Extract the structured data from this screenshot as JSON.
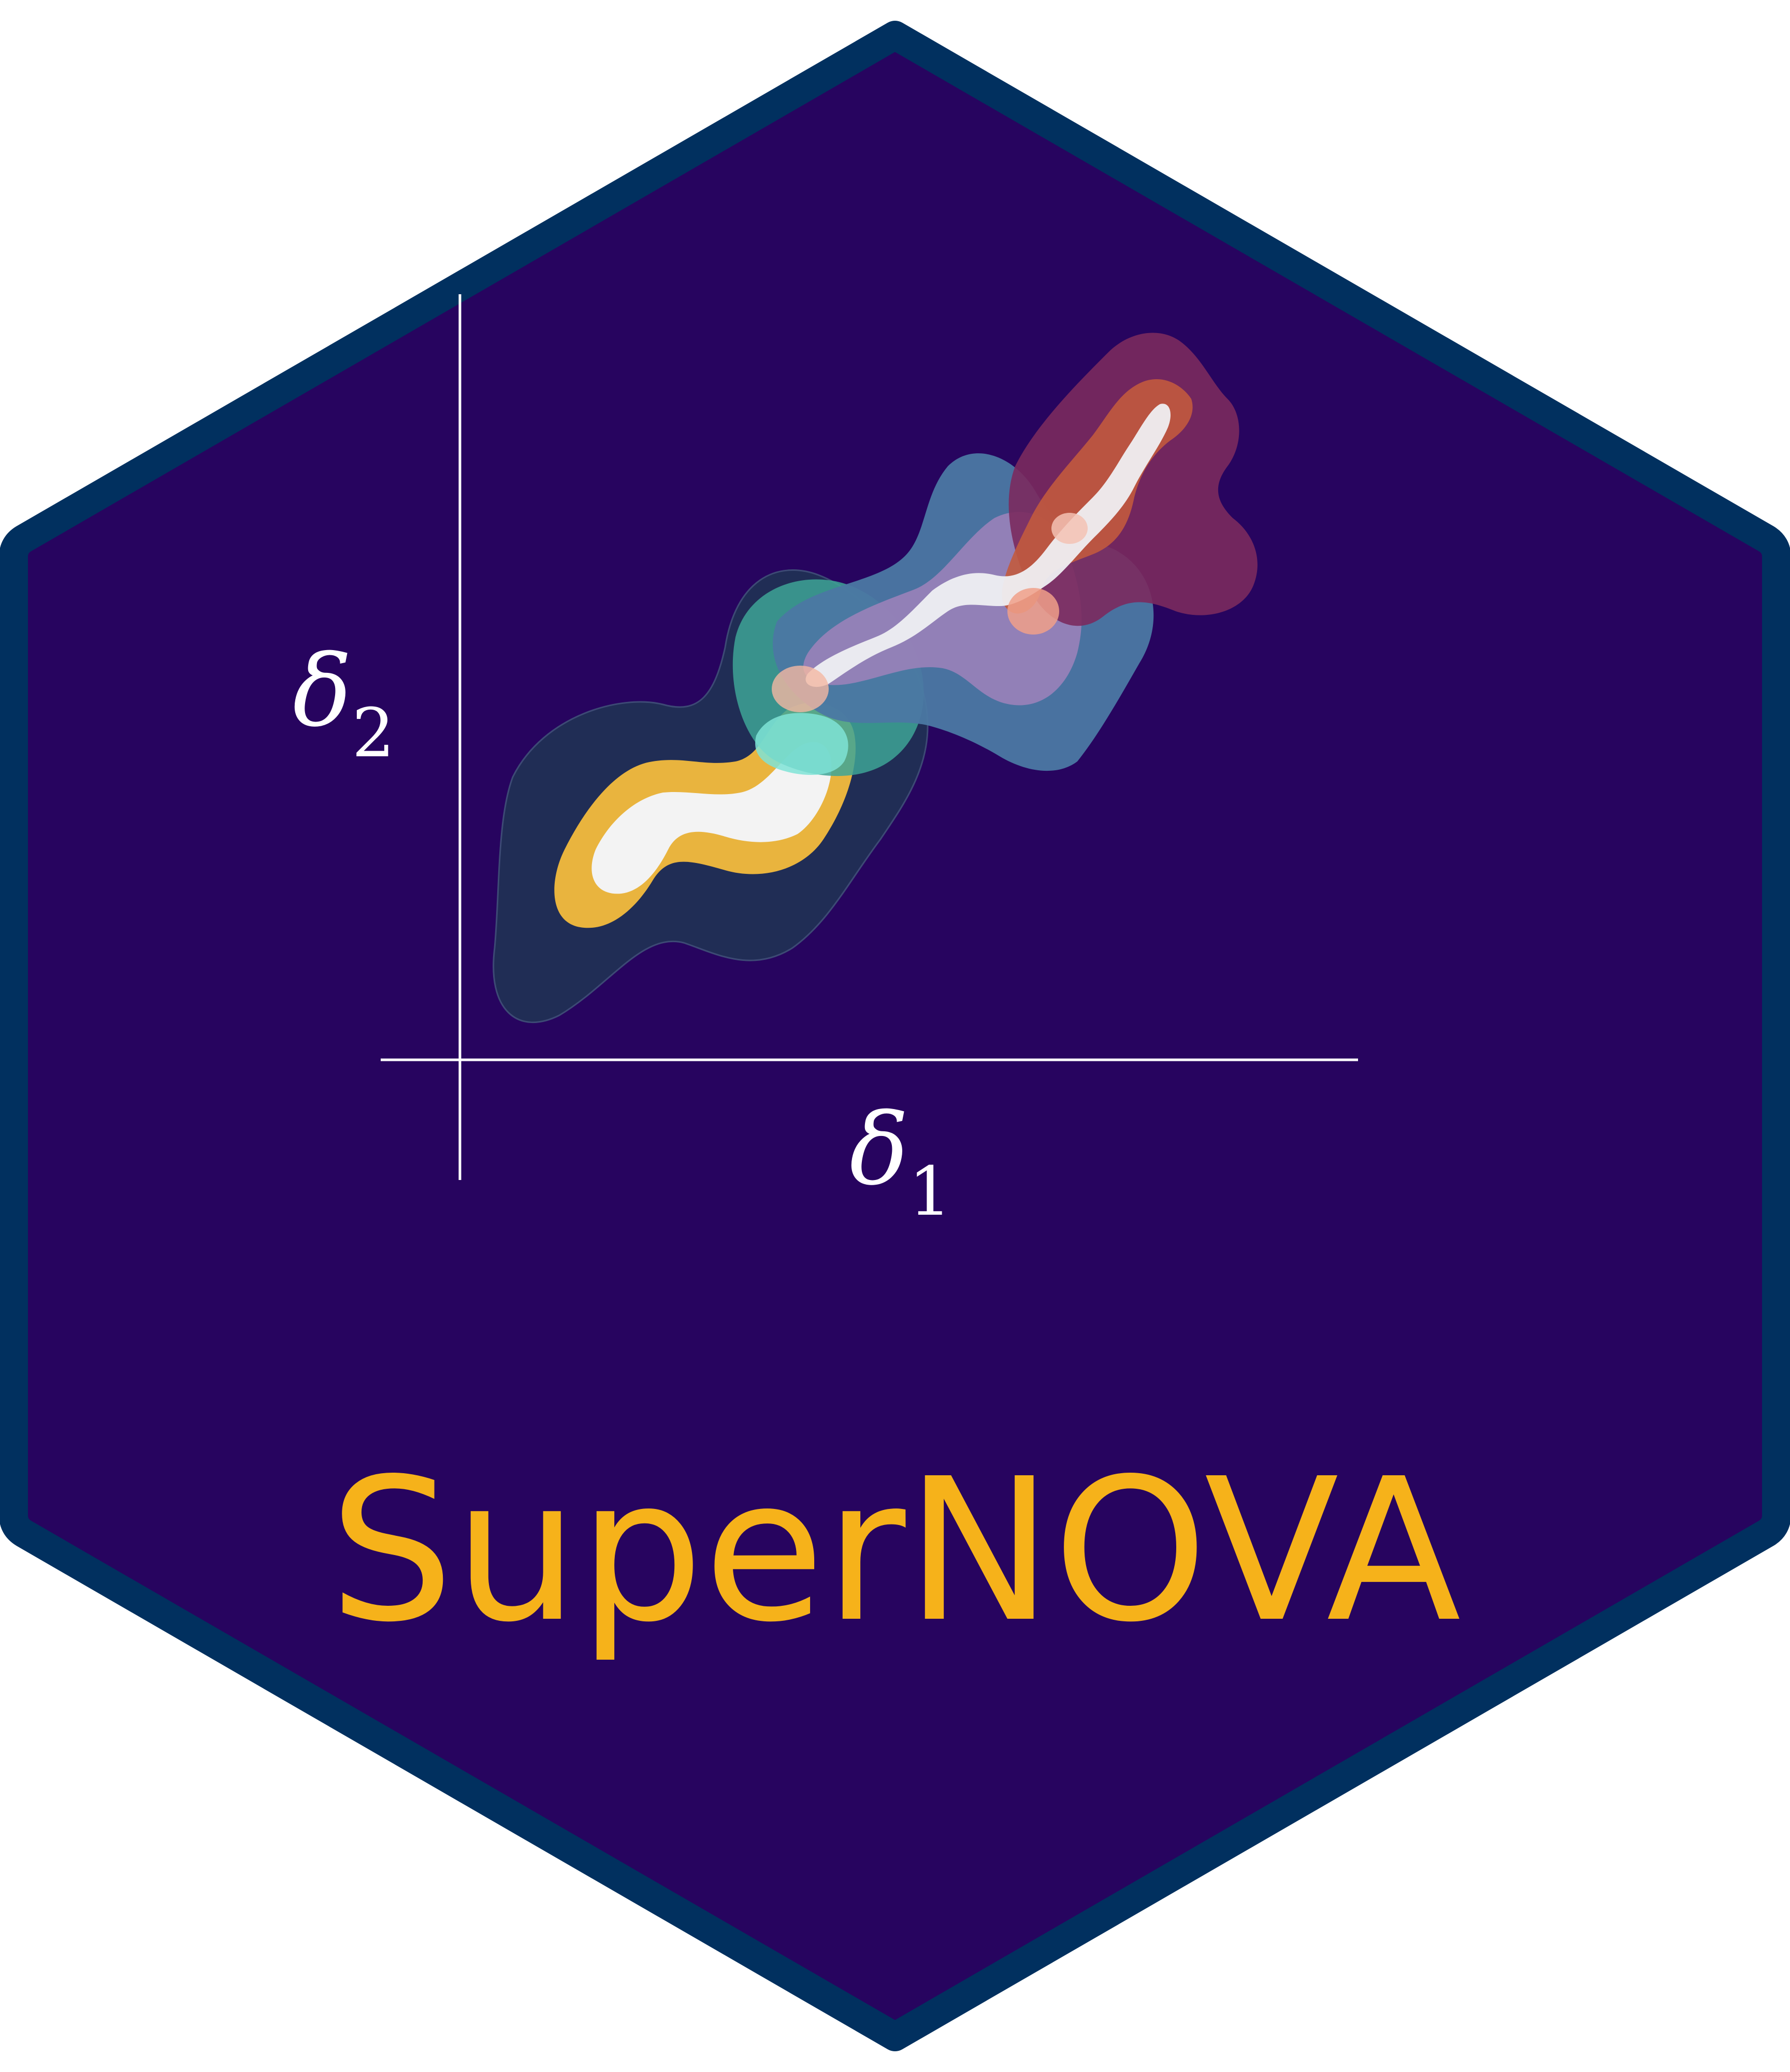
{
  "logo": {
    "name": "SuperNOVA",
    "colors": {
      "hex_fill": "#27045f",
      "hex_border": "#01305f",
      "title": "#f6b21a",
      "axis": "#ffffff",
      "blob_dark": "#203155",
      "blob_gold": "#e9b43e",
      "blob_light": "#f3f3f3",
      "blob_teal": "#3ea596",
      "blob_blue": "#4b78a3",
      "blob_violet": "#9a82b9",
      "blob_maroon": "#7b2a5e",
      "blob_orange": "#c25a3e"
    }
  },
  "plot": {
    "x_label": "δ",
    "x_subscript": "1",
    "y_label": "δ",
    "y_subscript": "2"
  }
}
